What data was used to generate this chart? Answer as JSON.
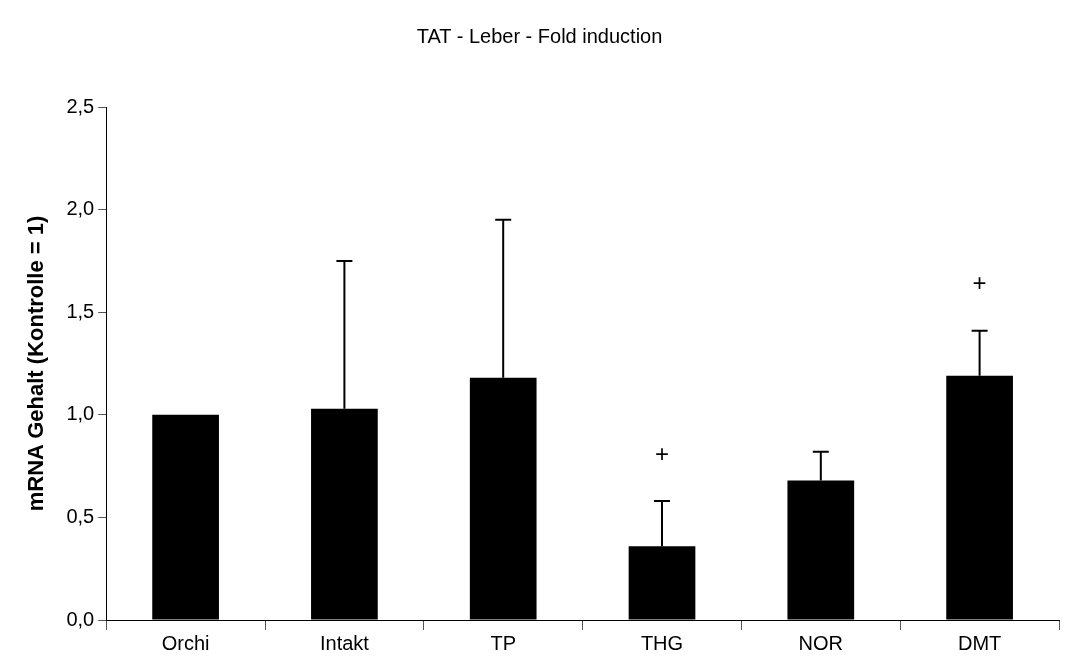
{
  "chart_data": {
    "type": "bar",
    "title": "TAT - Leber - Fold induction",
    "ylabel": "mRNA Gehalt (Kontrolle = 1)",
    "categories": [
      "Orchi",
      "Intakt",
      "TP",
      "THG",
      "NOR",
      "DMT"
    ],
    "values": [
      1.0,
      1.03,
      1.18,
      0.36,
      0.68,
      1.19
    ],
    "errors": [
      null,
      [
        1.03,
        1.75
      ],
      [
        1.18,
        1.95
      ],
      [
        0.36,
        0.58
      ],
      [
        0.68,
        0.82
      ],
      [
        1.19,
        1.41
      ]
    ],
    "color": "#000000",
    "ylim": [
      0,
      2.5
    ],
    "yticks": [
      {
        "value": 0,
        "label": "0,0"
      },
      {
        "value": 0.5,
        "label": "0,5"
      },
      {
        "value": 1,
        "label": "1,0"
      },
      {
        "value": 1.5,
        "label": "1,5"
      },
      {
        "value": 2,
        "label": "2,0"
      },
      {
        "value": 2.5,
        "label": "2,5"
      }
    ],
    "annotations": [
      {
        "text": "+",
        "x": "THG",
        "y": 0.58
      },
      {
        "text": "+",
        "x": "DMT",
        "y": 1.41
      }
    ],
    "grid": false,
    "legend": false
  }
}
